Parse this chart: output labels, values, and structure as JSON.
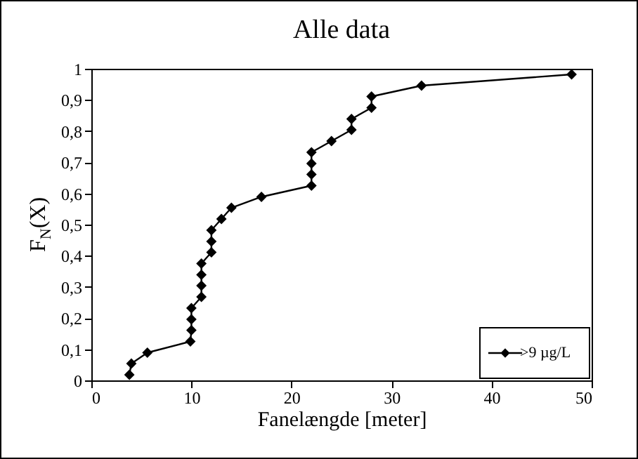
{
  "chart_data": {
    "type": "line",
    "title": "Alle data",
    "xlabel": "Fanelængde [meter]",
    "ylabel": "F$_{N}$(X)",
    "x": [
      3.8,
      4,
      5.6,
      9.9,
      10,
      10,
      10,
      11,
      11,
      11,
      11,
      12,
      12,
      12,
      13,
      14,
      17,
      22,
      22,
      22,
      22,
      24,
      26,
      26,
      28,
      28,
      33,
      48
    ],
    "series": [
      {
        "name": ">9 µg/L",
        "color": "#000000",
        "values": [
          0.018,
          0.054,
          0.089,
          0.125,
          0.161,
          0.196,
          0.232,
          0.268,
          0.304,
          0.339,
          0.375,
          0.411,
          0.446,
          0.482,
          0.518,
          0.554,
          0.589,
          0.625,
          0.661,
          0.696,
          0.732,
          0.768,
          0.804,
          0.839,
          0.875,
          0.911,
          0.946,
          0.982
        ]
      }
    ],
    "xlim": [
      0,
      50
    ],
    "xticks": [
      0,
      10,
      20,
      30,
      40,
      50
    ],
    "ylim": [
      0,
      1
    ],
    "yticks": [
      0,
      {
        "value": 0.1,
        "label": "0,1"
      },
      {
        "value": 0.2,
        "label": "0,2"
      },
      {
        "value": 0.3,
        "label": "0,3"
      },
      {
        "value": 0.4,
        "label": "0,4"
      },
      {
        "value": 0.5,
        "label": "0,5"
      },
      {
        "value": 0.6,
        "label": "0,6"
      },
      {
        "value": 0.7,
        "label": "0,7"
      },
      {
        "value": 0.8,
        "label": "0,8"
      },
      {
        "value": 0.9,
        "label": "0,9"
      },
      1
    ],
    "marker": "diamond",
    "line_style": "solid",
    "grid": false,
    "legend": "bottom right"
  }
}
